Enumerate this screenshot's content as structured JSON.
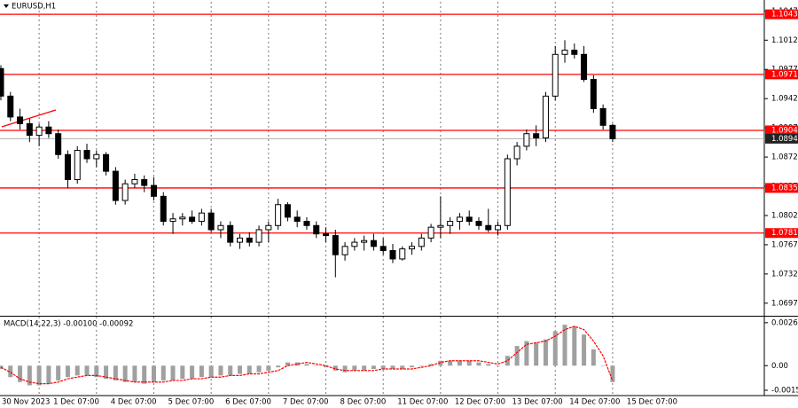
{
  "chart_data": [
    {
      "type": "candlestick",
      "title": "EURUSD,H1",
      "categories": [
        "30 Nov 2023",
        null,
        null,
        null,
        "1 Dec 07:00",
        null,
        null,
        null,
        null,
        null,
        "4 Dec 07:00",
        null,
        null,
        null,
        null,
        null,
        "5 Dec 07:00",
        null,
        null,
        null,
        null,
        null,
        "6 Dec 07:00",
        null,
        null,
        null,
        null,
        null,
        "7 Dec 07:00",
        null,
        null,
        null,
        null,
        null,
        "8 Dec 07:00",
        null,
        null,
        null,
        null,
        null,
        "11 Dec 07:00",
        null,
        null,
        null,
        null,
        null,
        "12 Dec 07:00",
        null,
        null,
        null,
        null,
        null,
        "13 Dec 07:00",
        null,
        null,
        null,
        null,
        null,
        "14 Dec 07:00",
        null,
        null,
        null,
        null,
        null,
        "15 Dec 07:00"
      ],
      "open": [
        1.0978,
        1.0945,
        1.092,
        1.0912,
        1.0898,
        1.0908,
        1.09,
        1.0875,
        1.0845,
        1.088,
        1.087,
        1.0875,
        1.0855,
        1.082,
        1.084,
        1.0845,
        1.0838,
        1.0825,
        1.0795,
        1.0798,
        1.08,
        1.0795,
        1.0805,
        1.0785,
        1.079,
        1.077,
        1.0775,
        1.077,
        1.0785,
        1.079,
        1.0815,
        1.08,
        1.0795,
        1.079,
        1.078,
        1.0778,
        1.0755,
        1.0765,
        1.077,
        1.0772,
        1.0765,
        1.076,
        1.075,
        1.0762,
        1.0765,
        1.0775,
        1.0788,
        1.079,
        1.0795,
        1.08,
        1.0795,
        1.079,
        1.0785,
        1.079,
        1.087,
        1.0885,
        1.09,
        1.0895,
        1.0945,
        1.0995,
        1.1,
        1.0995,
        1.0965,
        1.093,
        1.091
      ],
      "high": [
        1.0982,
        1.095,
        1.093,
        1.0918,
        1.0912,
        1.0915,
        1.0905,
        1.088,
        1.0885,
        1.0888,
        1.088,
        1.0878,
        1.086,
        1.0845,
        1.0852,
        1.085,
        1.0848,
        1.083,
        1.0805,
        1.0805,
        1.0808,
        1.081,
        1.081,
        1.0795,
        1.0795,
        1.078,
        1.0782,
        1.079,
        1.0795,
        1.0822,
        1.0818,
        1.0808,
        1.08,
        1.0795,
        1.0788,
        1.0785,
        1.077,
        1.0775,
        1.0778,
        1.078,
        1.0775,
        1.0768,
        1.0765,
        1.077,
        1.078,
        1.0792,
        1.0825,
        1.08,
        1.0805,
        1.0808,
        1.08,
        1.081,
        1.0795,
        1.0875,
        1.089,
        1.0905,
        1.091,
        1.095,
        1.1005,
        1.1012,
        1.1008,
        1.1005,
        1.097,
        1.0935,
        1.0912
      ],
      "low": [
        1.094,
        1.0915,
        1.0905,
        1.089,
        1.0885,
        1.0895,
        1.087,
        1.0835,
        1.084,
        1.0865,
        1.086,
        1.085,
        1.0815,
        1.0815,
        1.0835,
        1.083,
        1.082,
        1.079,
        1.078,
        1.079,
        1.0792,
        1.079,
        1.0782,
        1.0775,
        1.0765,
        1.0762,
        1.0765,
        1.0765,
        1.077,
        1.0785,
        1.0795,
        1.0788,
        1.0785,
        1.0775,
        1.077,
        1.0728,
        1.0748,
        1.076,
        1.076,
        1.076,
        1.0755,
        1.0745,
        1.0748,
        1.0755,
        1.076,
        1.077,
        1.0775,
        1.078,
        1.0785,
        1.079,
        1.0785,
        1.0782,
        1.0778,
        1.0785,
        1.0862,
        1.088,
        1.0885,
        1.089,
        1.094,
        1.0985,
        1.099,
        1.0962,
        1.0925,
        1.0905,
        1.089
      ],
      "close": [
        1.0945,
        1.092,
        1.0912,
        1.0898,
        1.0908,
        1.09,
        1.0875,
        1.0845,
        1.088,
        1.087,
        1.0875,
        1.0855,
        1.082,
        1.084,
        1.0845,
        1.0838,
        1.0825,
        1.0795,
        1.0798,
        1.08,
        1.0795,
        1.0805,
        1.0785,
        1.079,
        1.077,
        1.0775,
        1.077,
        1.0785,
        1.079,
        1.0815,
        1.08,
        1.0795,
        1.079,
        1.078,
        1.0778,
        1.0755,
        1.0765,
        1.077,
        1.0772,
        1.0765,
        1.076,
        1.075,
        1.0762,
        1.0765,
        1.0775,
        1.0788,
        1.079,
        1.0795,
        1.08,
        1.0795,
        1.079,
        1.0785,
        1.079,
        1.087,
        1.0885,
        1.09,
        1.0895,
        1.0945,
        1.0995,
        1.1,
        1.0995,
        1.0965,
        1.093,
        1.091,
        1.0894
      ],
      "color": "#000000",
      "ylim": [
        1.0683,
        1.1058
      ],
      "yticks": [
        1.1047,
        1.1012,
        1.0977,
        1.0942,
        1.0907,
        1.0872,
        1.0837,
        1.0802,
        1.0767,
        1.0732,
        1.0697
      ],
      "levels": {
        "values": [
          1.1043,
          1.0971,
          1.0904,
          1.0835,
          1.0781
        ],
        "color": "#ff0000"
      },
      "current_price": 1.0894,
      "grid": true
    },
    {
      "type": "macd",
      "title": "MACD(14,22,3) -0.00100 -0.00092",
      "histogram": {
        "color": "#a0a0a0",
        "values": [
          -0.0002,
          -0.0007,
          -0.001,
          -0.0012,
          -0.0012,
          -0.0011,
          -0.0009,
          -0.0007,
          -0.0006,
          -0.0006,
          -0.0007,
          -0.0008,
          -0.0009,
          -0.001,
          -0.001,
          -0.0011,
          -0.001,
          -0.0009,
          -0.0009,
          -0.0008,
          -0.0008,
          -0.0007,
          -0.0007,
          -0.0006,
          -0.0006,
          -0.0005,
          -0.0005,
          -0.0004,
          -0.0003,
          -0.0001,
          0.0002,
          0.0002,
          0.0001,
          0,
          -0.0001,
          -0.0003,
          -0.0004,
          -0.0003,
          -0.0003,
          -0.0002,
          -0.0002,
          -0.0002,
          -0.0002,
          -0.0001,
          0,
          0.0001,
          0.0003,
          0.0003,
          0.0003,
          0.0003,
          0.0002,
          0.0001,
          0,
          0.0006,
          0.0012,
          0.0015,
          0.0014,
          0.0016,
          0.0021,
          0.0025,
          0.0024,
          0.0019,
          0.001,
          0,
          -0.001
        ]
      },
      "signal": {
        "color": "#ff0000",
        "values": [
          -0.0001,
          -0.0004,
          -0.0008,
          -0.001,
          -0.0011,
          -0.0011,
          -0.001,
          -0.0008,
          -0.0007,
          -0.0006,
          -0.0006,
          -0.0007,
          -0.0008,
          -0.0009,
          -0.001,
          -0.001,
          -0.001,
          -0.001,
          -0.0009,
          -0.0009,
          -0.0008,
          -0.0008,
          -0.0007,
          -0.0007,
          -0.0006,
          -0.0006,
          -0.0005,
          -0.0005,
          -0.0004,
          -0.0003,
          0,
          0.0001,
          0.0002,
          0.0001,
          0,
          -0.0002,
          -0.0003,
          -0.0003,
          -0.0003,
          -0.0003,
          -0.0002,
          -0.0002,
          -0.0002,
          -0.0002,
          -0.0001,
          0,
          0.0002,
          0.0003,
          0.0003,
          0.0003,
          0.0003,
          0.0002,
          0.0001,
          0.0003,
          0.0008,
          0.0013,
          0.0014,
          0.0015,
          0.0018,
          0.0022,
          0.0024,
          0.0022,
          0.0015,
          0.0006,
          -0.00092
        ]
      },
      "ylim": [
        -0.00177,
        0.00299
      ],
      "yticks": [
        0.00262,
        {
          "value": 0,
          "label": "0.00"
        },
        -0.0015
      ]
    }
  ]
}
